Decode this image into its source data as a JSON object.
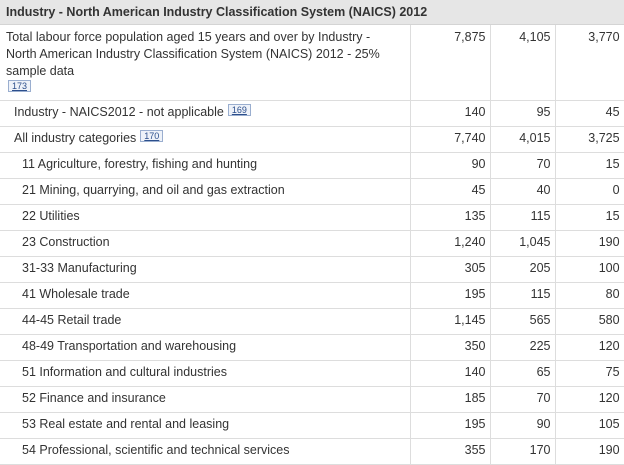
{
  "header": "Industry - North American Industry Classification System (NAICS) 2012",
  "total": {
    "label": "Total labour force population aged 15 years and over by Industry - North American Industry Classification System (NAICS) 2012 - 25% sample data",
    "ref": "173",
    "values": [
      "7,875",
      "4,105",
      "3,770"
    ]
  },
  "not_applicable": {
    "label": "Industry - NAICS2012 - not applicable",
    "ref": "169",
    "values": [
      "140",
      "95",
      "45"
    ]
  },
  "all_categories": {
    "label": "All industry categories",
    "ref": "170",
    "values": [
      "7,740",
      "4,015",
      "3,725"
    ]
  },
  "rows": [
    {
      "label": "11 Agriculture, forestry, fishing and hunting",
      "values": [
        "90",
        "70",
        "15"
      ]
    },
    {
      "label": "21 Mining, quarrying, and oil and gas extraction",
      "values": [
        "45",
        "40",
        "0"
      ]
    },
    {
      "label": "22 Utilities",
      "values": [
        "135",
        "115",
        "15"
      ]
    },
    {
      "label": "23 Construction",
      "values": [
        "1,240",
        "1,045",
        "190"
      ]
    },
    {
      "label": "31-33 Manufacturing",
      "values": [
        "305",
        "205",
        "100"
      ]
    },
    {
      "label": "41 Wholesale trade",
      "values": [
        "195",
        "115",
        "80"
      ]
    },
    {
      "label": "44-45 Retail trade",
      "values": [
        "1,145",
        "565",
        "580"
      ]
    },
    {
      "label": "48-49 Transportation and warehousing",
      "values": [
        "350",
        "225",
        "120"
      ]
    },
    {
      "label": "51 Information and cultural industries",
      "values": [
        "140",
        "65",
        "75"
      ]
    },
    {
      "label": "52 Finance and insurance",
      "values": [
        "185",
        "70",
        "120"
      ]
    },
    {
      "label": "53 Real estate and rental and leasing",
      "values": [
        "195",
        "90",
        "105"
      ]
    },
    {
      "label": "54 Professional, scientific and technical services",
      "values": [
        "355",
        "170",
        "190"
      ]
    }
  ]
}
